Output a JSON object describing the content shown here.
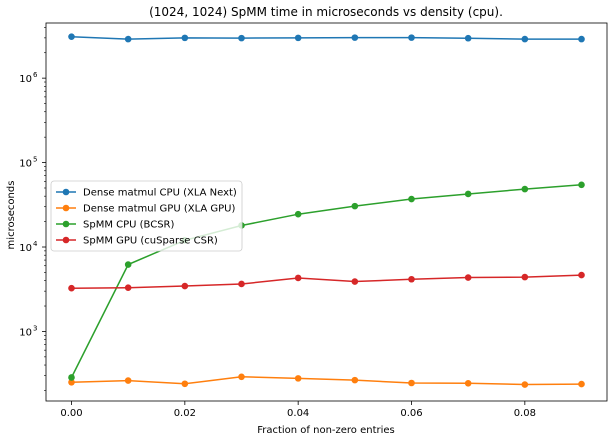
{
  "chart_data": {
    "type": "line",
    "title": "(1024, 1024) SpMM time in microseconds vs density (cpu).",
    "xlabel": "Fraction of non-zero entries",
    "ylabel": "microseconds",
    "xlim": [
      -0.0045,
      0.0945
    ],
    "ylim": [
      150,
      4500000
    ],
    "yscale": "log",
    "x_ticks": [
      0.0,
      0.02,
      0.04,
      0.06,
      0.08
    ],
    "x_tick_labels": [
      "0.00",
      "0.02",
      "0.04",
      "0.06",
      "0.08"
    ],
    "y_ticks": [
      1000,
      10000,
      100000,
      1000000
    ],
    "y_tick_exponents": [
      "3",
      "4",
      "5",
      "6"
    ],
    "legend_position": "center-left",
    "grid": false,
    "x": [
      0.0,
      0.01,
      0.02,
      0.03,
      0.04,
      0.05,
      0.06,
      0.07,
      0.08,
      0.09
    ],
    "series": [
      {
        "name": "Dense matmul CPU (XLA Next)",
        "color": "#1f77b4",
        "values": [
          3100000,
          2900000,
          3000000,
          2980000,
          3000000,
          3020000,
          3020000,
          2970000,
          2900000,
          2900000
        ]
      },
      {
        "name": "Dense matmul GPU (XLA GPU)",
        "color": "#ff7f0e",
        "values": [
          250,
          262,
          240,
          290,
          278,
          265,
          245,
          243,
          235,
          238
        ]
      },
      {
        "name": "SpMM CPU (BCSR)",
        "color": "#2ca02c",
        "values": [
          285,
          6200,
          12000,
          18000,
          24500,
          30500,
          37000,
          42500,
          48500,
          54500
        ]
      },
      {
        "name": "SpMM GPU (cuSparse CSR)",
        "color": "#d62728",
        "values": [
          3250,
          3300,
          3450,
          3650,
          4300,
          3900,
          4150,
          4350,
          4400,
          4650
        ]
      }
    ]
  }
}
